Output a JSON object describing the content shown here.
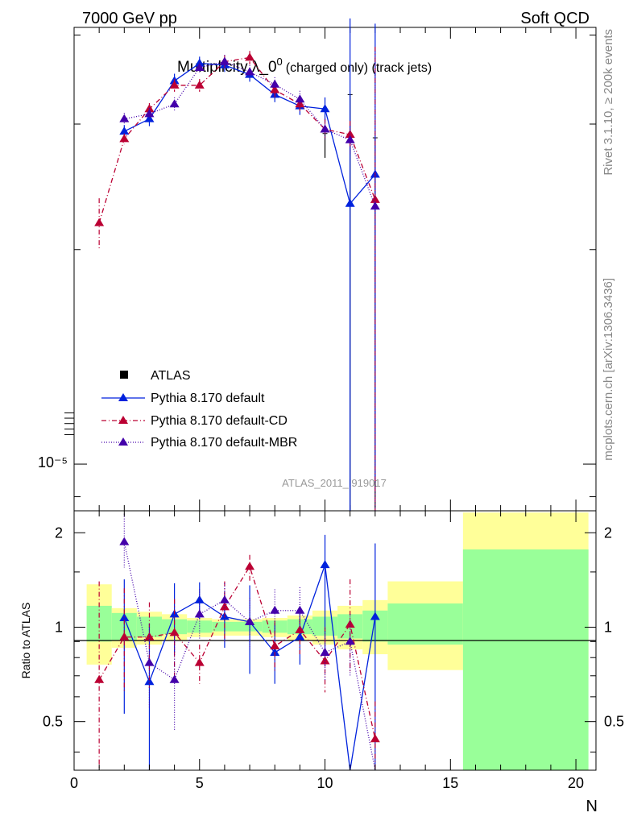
{
  "header": {
    "left": "7000 GeV pp",
    "right": "Soft QCD"
  },
  "side_labels": {
    "top": "Rivet 3.1.10, ≥ 200k events",
    "bottom": "mcplots.cern.ch [arXiv:1306.3436]"
  },
  "chart_data": {
    "type": "line",
    "title": "Multiplicity λ_0⁰ (charged only) (track jets)",
    "title_main": "Multiplicity λ_0",
    "title_sup": "0",
    "title_suffix": "(charged only) (track jets)",
    "analysis_tag": "ATLAS_2011_I919017",
    "xlabel": "N",
    "ylabel_ratio": "Ratio to ATLAS",
    "xlim": [
      0,
      20.8
    ],
    "ylim_main": [
      8.6e-06,
      4.1e-05
    ],
    "main_yscale": "log",
    "main_y_tick_label": "10⁻⁵",
    "ylim_ratio": [
      0.35,
      2.35
    ],
    "ratio_yscale": "log",
    "x_ticks": [
      "0",
      "5",
      "10",
      "15",
      "20"
    ],
    "ratio_ticks": [
      "0.5",
      "1",
      "2"
    ],
    "legend_position": "center-left",
    "data": {
      "name": "ATLAS",
      "x": [
        10,
        11,
        12
      ],
      "y": [
        2.73e-05,
        2.1e-05,
        1.82e-05
      ],
      "err_lo": [
        4e-07,
        1.4e-05,
        9.5e-06
      ],
      "err_hi": [
        1.8e-06,
        1.2e-05,
        1.05e-05
      ]
    },
    "ratio_bands": {
      "edges": [
        0.5,
        1.5,
        2.5,
        3.5,
        4.5,
        5.5,
        6.5,
        7.5,
        8.5,
        9.5,
        10.5,
        11.5,
        12.5,
        15.5,
        20.5
      ],
      "stat_lo": [
        0.9,
        0.91,
        0.93,
        0.95,
        0.96,
        0.97,
        0.97,
        0.96,
        0.95,
        0.94,
        0.92,
        0.9,
        0.88,
        0.88
      ],
      "stat_hi": [
        1.17,
        1.11,
        1.08,
        1.06,
        1.05,
        1.04,
        1.04,
        1.05,
        1.06,
        1.08,
        1.1,
        1.13,
        1.19,
        1.19
      ],
      "tot_lo": [
        0.76,
        0.86,
        0.88,
        0.91,
        0.93,
        0.94,
        0.94,
        0.93,
        0.91,
        0.88,
        0.85,
        0.82,
        0.73,
        0.73
      ],
      "tot_hi": [
        1.37,
        1.15,
        1.12,
        1.1,
        1.07,
        1.06,
        1.06,
        1.07,
        1.09,
        1.13,
        1.17,
        1.22,
        1.4,
        2.32
      ],
      "stat_last_hi": 1.77
    },
    "series": [
      {
        "name": "Pythia 8.170 default",
        "color": "#0022dd",
        "dash": "solid",
        "x": [
          2,
          3,
          4,
          5,
          6,
          7,
          8,
          9,
          10,
          11,
          12
        ],
        "y": [
          2.93e-05,
          3.05e-05,
          3.45e-05,
          3.65e-05,
          3.63e-05,
          3.52e-05,
          3.3e-05,
          3.18e-05,
          3.15e-05,
          2.32e-05,
          2.55e-05
        ],
        "err": [
          6e-07,
          7e-07,
          8e-07,
          8e-07,
          8e-07,
          8e-07,
          8e-07,
          9e-07,
          1.2e-06,
          1.9e-05,
          1.6e-05
        ],
        "ratio": [
          1.07,
          0.67,
          1.1,
          1.22,
          1.08,
          1.04,
          0.83,
          0.93,
          1.58,
          0.25,
          1.08
        ],
        "ratio_lo": [
          0.53,
          0.3,
          0.83,
          1.06,
          0.86,
          0.71,
          0.66,
          0.76,
          0.75,
          0.2,
          0.3
        ],
        "ratio_hi": [
          1.42,
          1.03,
          1.38,
          1.39,
          1.3,
          1.36,
          1.02,
          1.12,
          1.97,
          0.3,
          1.85
        ]
      },
      {
        "name": "Pythia 8.170 default-CD",
        "color": "#bb0033",
        "dash": "dashdot",
        "x": [
          1,
          2,
          3,
          4,
          5,
          6,
          7,
          8,
          9,
          10,
          11,
          12
        ],
        "y": [
          2.18e-05,
          2.86e-05,
          3.15e-05,
          3.4e-05,
          3.4e-05,
          3.67e-05,
          3.72e-05,
          3.35e-05,
          3.2e-05,
          2.95e-05,
          2.9e-05,
          2.35e-05
        ],
        "err": [
          1.8e-06,
          5e-07,
          6e-07,
          7e-07,
          7e-07,
          8e-07,
          8e-07,
          8e-07,
          9e-07,
          1e-06,
          1.3e-06,
          1.5e-05
        ],
        "ratio": [
          0.68,
          0.93,
          0.93,
          0.96,
          0.77,
          1.16,
          1.56,
          0.87,
          0.98,
          0.78,
          1.02,
          0.44
        ],
        "ratio_lo": [
          0.35,
          0.62,
          0.64,
          0.7,
          0.66,
          0.9,
          1.4,
          0.72,
          0.82,
          0.62,
          0.72,
          0.3
        ],
        "ratio_hi": [
          1.4,
          1.33,
          1.2,
          1.23,
          0.88,
          1.4,
          1.7,
          1.05,
          1.15,
          1.0,
          1.42,
          0.58
        ]
      },
      {
        "name": "Pythia 8.170 default-MBR",
        "color": "#4400aa",
        "dash": "dotted",
        "x": [
          2,
          3,
          4,
          5,
          6,
          7,
          8,
          9,
          10,
          11,
          12
        ],
        "y": [
          3.05e-05,
          3.1e-05,
          3.2e-05,
          3.6e-05,
          3.67e-05,
          3.55e-05,
          3.41e-05,
          3.25e-05,
          2.95e-05,
          2.85e-05,
          2.3e-05
        ],
        "err": [
          6e-07,
          6e-07,
          7e-07,
          7e-07,
          8e-07,
          8e-07,
          8e-07,
          9e-07,
          1e-06,
          1.3e-06,
          1.5e-05
        ],
        "ratio": [
          1.87,
          0.77,
          0.68,
          1.1,
          1.22,
          1.04,
          1.13,
          1.13,
          0.83,
          0.9,
          0.25
        ],
        "ratio_lo": [
          1.55,
          0.55,
          0.47,
          0.92,
          1.04,
          0.85,
          0.95,
          0.97,
          0.67,
          0.7,
          0.2
        ],
        "ratio_hi": [
          2.3,
          1.02,
          0.93,
          1.32,
          1.38,
          1.24,
          1.32,
          1.34,
          0.99,
          1.1,
          0.3
        ]
      }
    ],
    "legend": [
      "ATLAS",
      "Pythia 8.170 default",
      "Pythia 8.170 default-CD",
      "Pythia 8.170 default-MBR"
    ]
  }
}
